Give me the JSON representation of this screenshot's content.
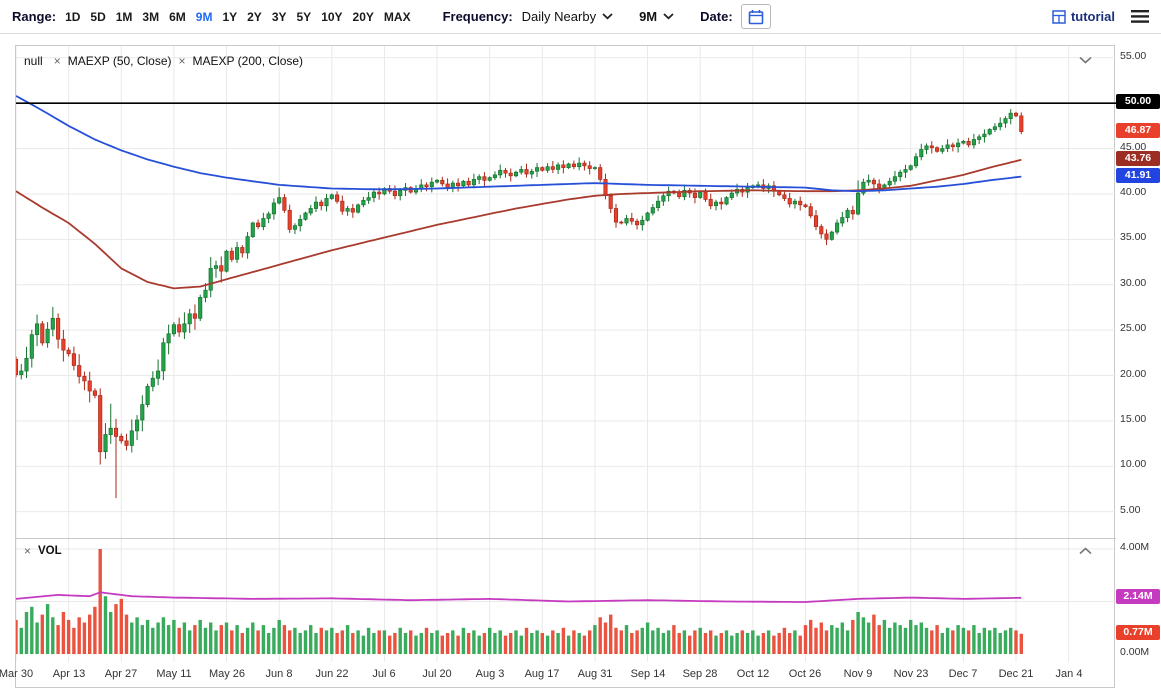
{
  "toolbar": {
    "range_label": "Range:",
    "range_options": [
      "1D",
      "5D",
      "1M",
      "3M",
      "6M",
      "9M",
      "1Y",
      "2Y",
      "3Y",
      "5Y",
      "10Y",
      "20Y",
      "MAX"
    ],
    "range_selected": "9M",
    "frequency_label": "Frequency:",
    "frequency_value": "Daily Nearby",
    "period_value": "9M",
    "date_label": "Date:",
    "tutorial_label": "tutorial"
  },
  "legend": {
    "symbol": "null",
    "studies": [
      "MAEXP (50, Close)",
      "MAEXP (200, Close)"
    ],
    "volume_label": "VOL"
  },
  "colors": {
    "up": "#23a24a",
    "up_border": "#15722e",
    "down": "#e8402a",
    "down_border": "#a8291a",
    "ma50": "#2750d8",
    "ma200": "#a93a2e",
    "vol_ma": "#c53bc0",
    "grid": "#e9e9e9",
    "frame": "#c9c9c9",
    "accent_blue": "#1f6bf2",
    "horizontal_line": "#000000",
    "badge_black": "#000000",
    "badge_red": "#e8402a",
    "badge_dark_red": "#9c2d23",
    "badge_blue": "#2244e0",
    "badge_magenta": "#c53bc0"
  },
  "chart_data": {
    "type": "candlestick",
    "symbol": "null",
    "frequency": "Daily Nearby",
    "range": "9M",
    "studies": [
      "MAEXP (50, Close)",
      "MAEXP (200, Close)",
      "VOL"
    ],
    "horizontal_line_price": 50.0,
    "last_price": 46.87,
    "ma50_last": 41.91,
    "ma200_last": 43.76,
    "vol_ma_last_millions": 2.14,
    "last_volume_millions": 0.77,
    "first_open": 21.8,
    "closes": [
      20.1,
      20.5,
      21.9,
      24.5,
      25.7,
      23.6,
      25.1,
      26.3,
      24.0,
      22.8,
      22.4,
      21.1,
      19.9,
      19.4,
      18.3,
      17.8,
      11.6,
      13.5,
      14.2,
      13.3,
      12.8,
      12.3,
      13.9,
      15.1,
      16.8,
      18.8,
      19.7,
      20.5,
      23.6,
      24.6,
      25.6,
      24.8,
      25.7,
      26.8,
      26.3,
      28.6,
      29.4,
      31.8,
      32.1,
      31.5,
      33.7,
      32.8,
      34.1,
      33.5,
      35.3,
      36.8,
      36.4,
      37.3,
      37.8,
      39.0,
      39.6,
      38.2,
      36.1,
      36.5,
      37.2,
      37.9,
      38.4,
      39.1,
      38.7,
      39.5,
      39.9,
      39.2,
      38.1,
      38.4,
      38.0,
      38.8,
      39.3,
      39.6,
      40.2,
      40.0,
      40.6,
      40.3,
      39.8,
      40.4,
      40.7,
      40.2,
      40.6,
      41.0,
      40.8,
      41.3,
      41.5,
      41.1,
      40.7,
      41.2,
      40.9,
      41.4,
      41.0,
      41.6,
      41.9,
      41.5,
      41.8,
      42.1,
      42.6,
      42.3,
      42.0,
      42.4,
      42.7,
      42.2,
      42.5,
      42.9,
      42.6,
      43.0,
      42.7,
      43.2,
      42.9,
      43.3,
      43.0,
      43.4,
      43.1,
      42.8,
      42.9,
      41.6,
      39.8,
      38.4,
      36.9,
      36.8,
      37.3,
      37.0,
      36.6,
      37.1,
      37.9,
      38.5,
      39.2,
      39.8,
      40.3,
      40.1,
      39.7,
      40.4,
      40.1,
      39.6,
      40.2,
      39.4,
      38.7,
      39.1,
      38.9,
      39.6,
      40.1,
      40.5,
      40.2,
      40.7,
      40.9,
      41.0,
      40.6,
      40.9,
      40.3,
      39.9,
      39.5,
      38.9,
      39.2,
      38.8,
      38.6,
      37.6,
      36.4,
      35.6,
      35.0,
      35.8,
      36.8,
      37.4,
      38.2,
      37.8,
      40.1,
      41.3,
      41.5,
      41.1,
      40.7,
      41.0,
      41.4,
      41.9,
      42.4,
      42.7,
      43.1,
      44.1,
      44.9,
      45.3,
      45.1,
      44.7,
      45.0,
      45.4,
      45.2,
      45.6,
      45.8,
      45.4,
      46.0,
      46.3,
      46.6,
      47.1,
      47.4,
      47.8,
      48.3,
      48.9,
      48.6,
      46.87
    ],
    "volumes_millions": [
      1.3,
      1.0,
      1.6,
      1.8,
      1.2,
      1.5,
      1.9,
      1.4,
      1.1,
      1.6,
      1.3,
      1.0,
      1.4,
      1.2,
      1.5,
      1.8,
      4.0,
      2.2,
      1.6,
      1.9,
      2.1,
      1.5,
      1.2,
      1.4,
      1.1,
      1.3,
      1.0,
      1.2,
      1.4,
      1.1,
      1.3,
      1.0,
      1.2,
      0.9,
      1.1,
      1.3,
      1.0,
      1.2,
      0.9,
      1.1,
      1.2,
      0.9,
      1.1,
      0.8,
      1.0,
      1.2,
      0.9,
      1.1,
      0.8,
      1.0,
      1.3,
      1.1,
      0.9,
      1.0,
      0.8,
      0.9,
      1.1,
      0.8,
      1.0,
      0.9,
      1.0,
      0.8,
      0.9,
      1.1,
      0.8,
      0.9,
      0.7,
      1.0,
      0.8,
      0.9,
      0.9,
      0.7,
      0.8,
      1.0,
      0.8,
      0.9,
      0.7,
      0.8,
      1.0,
      0.8,
      0.9,
      0.7,
      0.8,
      0.9,
      0.7,
      1.0,
      0.8,
      0.9,
      0.7,
      0.8,
      1.0,
      0.8,
      0.9,
      0.7,
      0.8,
      0.9,
      0.7,
      1.0,
      0.8,
      0.9,
      0.8,
      0.7,
      0.9,
      0.8,
      1.0,
      0.7,
      0.9,
      0.8,
      0.7,
      0.9,
      1.1,
      1.4,
      1.2,
      1.5,
      1.0,
      0.9,
      1.1,
      0.8,
      0.9,
      1.0,
      1.2,
      0.9,
      1.0,
      0.8,
      0.9,
      1.1,
      0.8,
      0.9,
      0.7,
      0.9,
      1.0,
      0.8,
      0.9,
      0.7,
      0.8,
      0.9,
      0.7,
      0.8,
      0.9,
      0.8,
      0.9,
      0.7,
      0.8,
      0.9,
      0.7,
      0.8,
      1.0,
      0.8,
      0.9,
      0.7,
      1.1,
      1.3,
      1.0,
      1.2,
      0.9,
      1.1,
      1.0,
      1.2,
      0.9,
      1.3,
      1.6,
      1.4,
      1.2,
      1.5,
      1.1,
      1.3,
      1.0,
      1.2,
      1.1,
      1.0,
      1.3,
      1.1,
      1.2,
      1.0,
      0.9,
      1.1,
      0.8,
      1.0,
      0.9,
      1.1,
      1.0,
      0.9,
      1.1,
      0.8,
      1.0,
      0.9,
      1.0,
      0.8,
      0.9,
      1.0,
      0.9,
      0.77
    ],
    "wick_low_overrides": {
      "16": 10.2,
      "19": 6.5
    },
    "wick_high_overrides": {
      "18": 16.9,
      "50": 40.7,
      "160": 41.5,
      "189": 49.35
    },
    "ma50_anchors": [
      [
        0,
        50.8
      ],
      [
        5,
        49.2
      ],
      [
        10,
        47.5
      ],
      [
        15,
        46.0
      ],
      [
        20,
        44.8
      ],
      [
        25,
        43.8
      ],
      [
        30,
        43.0
      ],
      [
        35,
        42.3
      ],
      [
        40,
        41.8
      ],
      [
        50,
        41.0
      ],
      [
        60,
        40.6
      ],
      [
        70,
        40.5
      ],
      [
        80,
        40.6
      ],
      [
        90,
        40.8
      ],
      [
        100,
        41.0
      ],
      [
        110,
        41.2
      ],
      [
        115,
        41.1
      ],
      [
        120,
        41.0
      ],
      [
        130,
        40.9
      ],
      [
        140,
        40.8
      ],
      [
        150,
        40.7
      ],
      [
        155,
        40.4
      ],
      [
        160,
        40.3
      ],
      [
        165,
        40.4
      ],
      [
        170,
        40.6
      ],
      [
        175,
        40.8
      ],
      [
        180,
        41.1
      ],
      [
        185,
        41.5
      ],
      [
        191,
        41.91
      ]
    ],
    "ma200_anchors": [
      [
        0,
        40.3
      ],
      [
        5,
        38.5
      ],
      [
        10,
        36.8
      ],
      [
        15,
        34.5
      ],
      [
        20,
        31.8
      ],
      [
        25,
        30.3
      ],
      [
        30,
        29.6
      ],
      [
        35,
        29.8
      ],
      [
        40,
        30.6
      ],
      [
        45,
        31.4
      ],
      [
        50,
        32.2
      ],
      [
        55,
        33.0
      ],
      [
        60,
        33.8
      ],
      [
        65,
        34.5
      ],
      [
        70,
        35.2
      ],
      [
        75,
        35.9
      ],
      [
        80,
        36.6
      ],
      [
        85,
        37.2
      ],
      [
        90,
        37.8
      ],
      [
        95,
        38.4
      ],
      [
        100,
        38.9
      ],
      [
        105,
        39.4
      ],
      [
        110,
        39.8
      ],
      [
        115,
        40.0
      ],
      [
        120,
        40.1
      ],
      [
        130,
        40.3
      ],
      [
        140,
        40.4
      ],
      [
        150,
        40.3
      ],
      [
        155,
        40.3
      ],
      [
        160,
        40.4
      ],
      [
        165,
        40.6
      ],
      [
        170,
        40.9
      ],
      [
        175,
        41.5
      ],
      [
        180,
        42.1
      ],
      [
        185,
        42.9
      ],
      [
        191,
        43.76
      ]
    ],
    "vol_ma_anchors": [
      [
        0,
        2.1
      ],
      [
        8,
        2.25
      ],
      [
        14,
        2.2
      ],
      [
        16,
        2.35
      ],
      [
        22,
        2.2
      ],
      [
        30,
        2.15
      ],
      [
        45,
        2.1
      ],
      [
        60,
        2.12
      ],
      [
        75,
        2.05
      ],
      [
        90,
        2.1
      ],
      [
        105,
        2.0
      ],
      [
        120,
        2.05
      ],
      [
        135,
        2.0
      ],
      [
        150,
        1.98
      ],
      [
        160,
        2.1
      ],
      [
        170,
        2.15
      ],
      [
        180,
        2.1
      ],
      [
        191,
        2.14
      ]
    ],
    "price_axis": {
      "min": 2.1,
      "max": 56.3,
      "tick_step": 5,
      "tick_values": [
        55,
        50,
        45,
        40,
        35,
        30,
        25,
        20,
        15,
        10,
        5
      ],
      "tick_labels": [
        "55.00",
        "50.00",
        "45.00",
        "40.00",
        "35.00",
        "30.00",
        "25.00",
        "20.00",
        "15.00",
        "10.00",
        "5.00"
      ]
    },
    "volume_axis": {
      "max_millions": 4.2,
      "ticks": [
        {
          "label": "4.00M",
          "value": 4
        },
        {
          "label": "0.00M",
          "value": 0
        }
      ],
      "gridline_values": [
        4,
        2
      ]
    },
    "x_axis": {
      "total_days": 209,
      "tick_days": [
        0,
        10,
        20,
        30,
        40,
        50,
        60,
        70,
        80,
        90,
        100,
        110,
        120,
        130,
        140,
        150,
        160,
        170,
        180,
        190,
        200
      ],
      "tick_labels": [
        "Mar 30",
        "Apr 13",
        "Apr 27",
        "May 11",
        "May 26",
        "Jun 8",
        "Jun 22",
        "Jul 6",
        "Jul 20",
        "Aug 3",
        "Aug 17",
        "Aug 31",
        "Sep 14",
        "Sep 28",
        "Oct 12",
        "Oct 26",
        "Nov 9",
        "Nov 23",
        "Dec 7",
        "Dec 21",
        "Jan 4"
      ]
    },
    "price_badges": [
      {
        "label": "50.00",
        "value": 50.0,
        "color": "#000000"
      },
      {
        "label": "46.87",
        "value": 46.87,
        "color": "#e8402a"
      },
      {
        "label": "43.76",
        "value": 43.76,
        "color": "#9c2d23"
      },
      {
        "label": "41.91",
        "value": 41.91,
        "color": "#2244e0"
      }
    ],
    "volume_badges": [
      {
        "label": "2.14M",
        "value": 2.14,
        "color": "#c53bc0"
      },
      {
        "label": "0.77M",
        "value": 0.77,
        "color": "#e8402a"
      }
    ]
  }
}
